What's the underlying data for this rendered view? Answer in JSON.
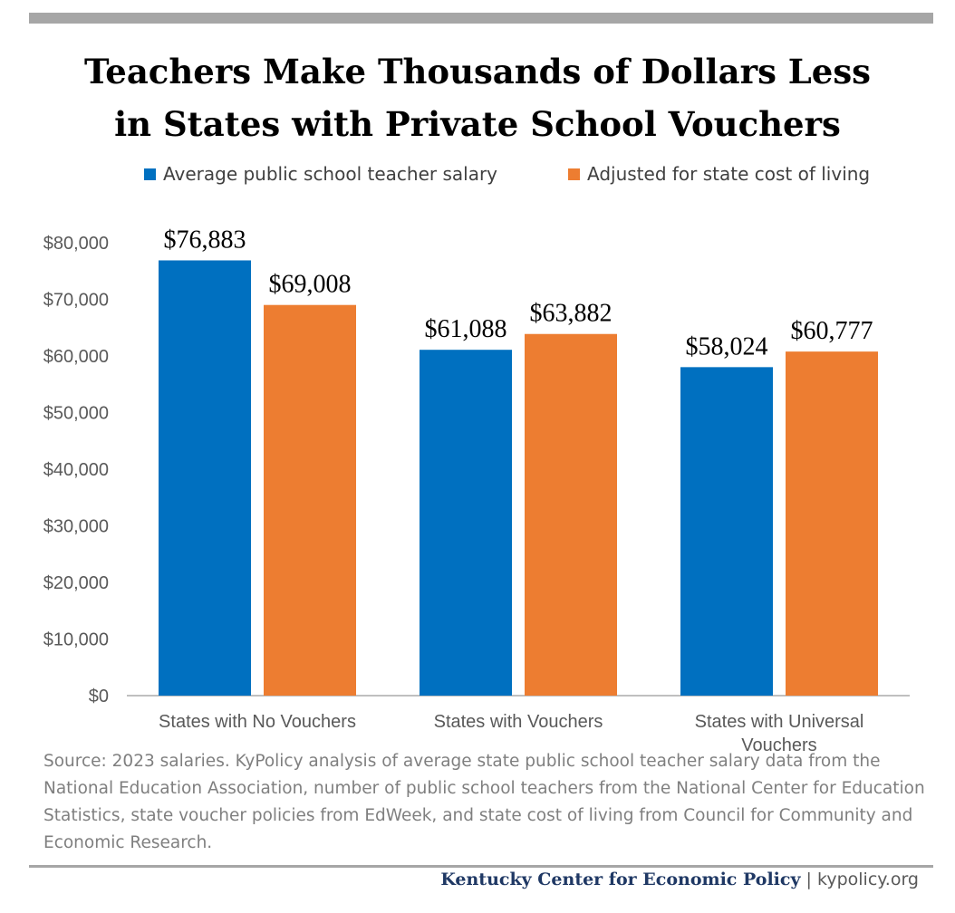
{
  "title_lines": [
    "Teachers Make Thousands of Dollars Less",
    "in States with Private School Vouchers"
  ],
  "chart_data": {
    "type": "bar",
    "categories": [
      "States with No Vouchers",
      "States with Vouchers",
      "States with Universal Vouchers"
    ],
    "series": [
      {
        "name": "Average public school teacher salary",
        "color": "#0070c0",
        "values": [
          76883,
          61088,
          58024
        ],
        "labels": [
          "$76,883",
          "$61,088",
          "$58,024"
        ]
      },
      {
        "name": "Adjusted for state cost of living",
        "color": "#ed7d31",
        "values": [
          69008,
          63882,
          60777
        ],
        "labels": [
          "$69,008",
          "$63,882",
          "$60,777"
        ]
      }
    ],
    "ylim": [
      0,
      80000
    ],
    "yticks": [
      0,
      10000,
      20000,
      30000,
      40000,
      50000,
      60000,
      70000,
      80000
    ],
    "ytick_labels": [
      "$0",
      "$10,000",
      "$20,000",
      "$30,000",
      "$40,000",
      "$50,000",
      "$60,000",
      "$70,000",
      "$80,000"
    ],
    "legend_position": "top",
    "grid": false
  },
  "source_text": "Source: 2023 salaries. KyPolicy analysis of average state public school teacher salary data from the National Education Association, number of public school teachers from the National Center for Education Statistics, state voucher policies from EdWeek, and state cost of living from Council for Community and Economic Research.",
  "footer": {
    "org": "Kentucky Center for Economic Policy",
    "separator": "|",
    "url": "kypolicy.org"
  }
}
